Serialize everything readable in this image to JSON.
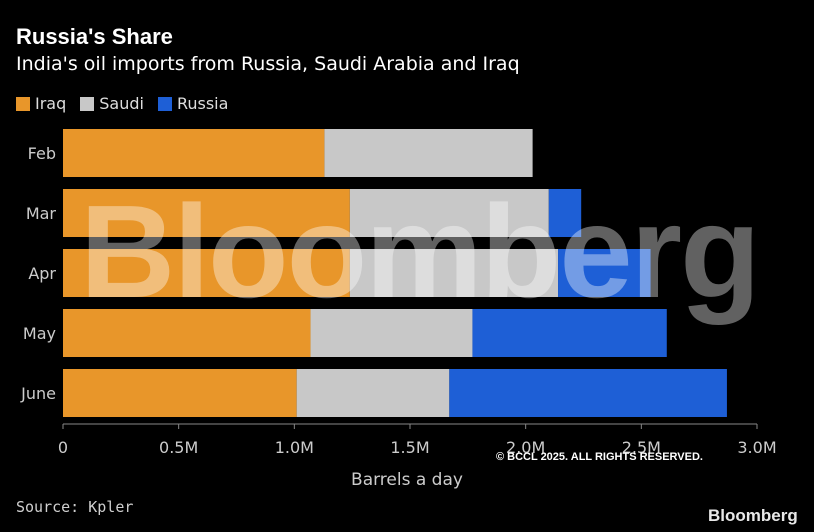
{
  "header": {
    "title": "Russia's Share",
    "subtitle": "India's oil imports from Russia, Saudi Arabia and Iraq"
  },
  "footer": {
    "source": "Source: Kpler",
    "copyright": "© BCCL 2025. ALL RIGHTS RESERVED.",
    "brand": "Bloomberg"
  },
  "watermark": "Bloomberg",
  "colors": {
    "iraq": "#e8962a",
    "saudi": "#c8c8c8",
    "russia": "#1e5fd6",
    "axis_text": "#cccccc"
  },
  "chart_data": {
    "type": "bar",
    "orientation": "horizontal",
    "stacked": true,
    "title": "Russia's Share",
    "subtitle": "India's oil imports from Russia, Saudi Arabia and Iraq",
    "categories": [
      "Feb",
      "Mar",
      "Apr",
      "May",
      "June"
    ],
    "series": [
      {
        "name": "Iraq",
        "values": [
          1.13,
          1.24,
          1.24,
          1.07,
          1.01
        ]
      },
      {
        "name": "Saudi",
        "values": [
          0.9,
          0.86,
          0.9,
          0.7,
          0.66
        ]
      },
      {
        "name": "Russia",
        "values": [
          0.0,
          0.14,
          0.4,
          0.84,
          1.2
        ]
      }
    ],
    "xlabel": "Barrels a day",
    "ylabel": "",
    "xlim": [
      0,
      3.0
    ],
    "xticks": [
      0,
      0.5,
      1.0,
      1.5,
      2.0,
      2.5,
      3.0
    ],
    "xtick_labels": [
      "0",
      "0.5M",
      "1.0M",
      "1.5M",
      "2.0M",
      "2.5M",
      "3.0M"
    ],
    "legend": [
      "Iraq",
      "Saudi",
      "Russia"
    ],
    "legend_position": "top-left",
    "grid": false
  }
}
